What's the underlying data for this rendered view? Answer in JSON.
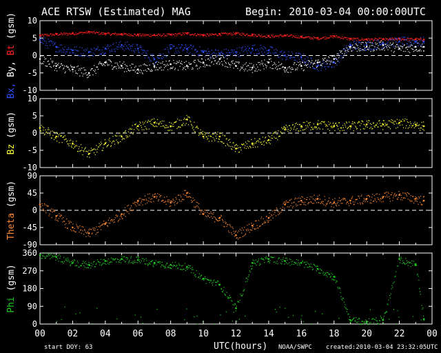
{
  "header": {
    "title": "ACE RTSW (Estimated) MAG",
    "begin": "Begin: 2010-03-04 00:00:00UTC"
  },
  "footer": {
    "start_doy": "start DOY:   63",
    "xlabel": "UTC(hours)",
    "source": "NOAA/SWPC",
    "created": "created:2010-03-04 23:32:05UTC"
  },
  "colors": {
    "bt": "#ff2020",
    "bx": "#3050ff",
    "by": "#ffffff",
    "bz": "#ffff30",
    "theta": "#ff8a30",
    "phi": "#20d020",
    "frame": "#ffffff",
    "zero_line": "#ffffff"
  },
  "chart_data": [
    {
      "type": "scatter",
      "panel": "bfield",
      "ylabel_parts": [
        {
          "text": "Bx,",
          "color": "#3050ff"
        },
        {
          "text": " By,",
          "color": "#ffffff"
        },
        {
          "text": " Bt",
          "color": "#ff2020"
        },
        {
          "text": " (gsm)",
          "color": "#ffffff"
        }
      ],
      "ylim": [
        -10,
        10
      ],
      "yticks": [
        "10",
        "5",
        "0",
        "-5",
        "-10"
      ],
      "ytick_values": [
        10,
        5,
        0,
        -5,
        -10
      ],
      "xlim": [
        0,
        24
      ],
      "series": [
        {
          "name": "Bt",
          "color": "#ff2020",
          "x": [
            0,
            1,
            2,
            3,
            4,
            5,
            6,
            7,
            8,
            9,
            10,
            11,
            12,
            13,
            14,
            15,
            16,
            17,
            18,
            19,
            20,
            21,
            22,
            23,
            23.5
          ],
          "y": [
            5.8,
            6.2,
            6.4,
            6.8,
            6.3,
            6.2,
            6.0,
            5.9,
            6.0,
            6.4,
            5.9,
            6.2,
            6.4,
            6.0,
            5.6,
            5.8,
            5.4,
            5.0,
            5.6,
            4.8,
            4.7,
            4.7,
            4.8,
            4.7,
            4.6
          ]
        },
        {
          "name": "Bx",
          "color": "#3050ff",
          "x": [
            0,
            1,
            2,
            3,
            4,
            5,
            6,
            7,
            8,
            9,
            10,
            11,
            12,
            13,
            14,
            15,
            16,
            17,
            18,
            19,
            20,
            21,
            22,
            23,
            23.5
          ],
          "y": [
            4.5,
            2.5,
            1.5,
            1.0,
            2.0,
            3.0,
            2.0,
            -1.0,
            2.0,
            2.0,
            1.0,
            0.5,
            1.0,
            2.0,
            1.5,
            0.0,
            -0.5,
            -3.0,
            -2.0,
            3.0,
            3.0,
            3.5,
            4.0,
            4.0,
            4.0
          ]
        },
        {
          "name": "By",
          "color": "#ffffff",
          "x": [
            0,
            1,
            2,
            3,
            4,
            5,
            6,
            7,
            8,
            9,
            10,
            11,
            12,
            13,
            14,
            15,
            16,
            17,
            18,
            19,
            20,
            21,
            22,
            23,
            23.5
          ],
          "y": [
            -1.0,
            -3.0,
            -4.0,
            -5.0,
            -2.0,
            -3.0,
            -4.0,
            -3.0,
            -2.5,
            -3.0,
            -2.0,
            -1.0,
            -3.0,
            -3.5,
            -2.0,
            -3.5,
            -3.0,
            -2.0,
            -1.0,
            2.5,
            2.5,
            3.0,
            2.0,
            2.5,
            2.5
          ]
        }
      ]
    },
    {
      "type": "scatter",
      "panel": "bz",
      "ylabel_parts": [
        {
          "text": "Bz",
          "color": "#ffff30"
        },
        {
          "text": "  (gsm)",
          "color": "#ffffff"
        }
      ],
      "ylim": [
        -10,
        10
      ],
      "yticks": [
        "10",
        "5",
        "0",
        "-5",
        "-10"
      ],
      "ytick_values": [
        10,
        5,
        0,
        -5,
        -10
      ],
      "xlim": [
        0,
        24
      ],
      "series": [
        {
          "name": "Bz",
          "color": "#ffff30",
          "x": [
            0,
            1,
            2,
            3,
            4,
            5,
            6,
            7,
            8,
            9,
            10,
            11,
            12,
            13,
            14,
            15,
            16,
            17,
            18,
            19,
            20,
            21,
            22,
            23,
            23.5
          ],
          "y": [
            1.5,
            -1.0,
            -3.0,
            -6.0,
            -3.0,
            -1.0,
            2.0,
            3.0,
            2.0,
            4.0,
            -1.0,
            -1.0,
            -4.5,
            -3.0,
            -2.0,
            1.0,
            2.0,
            2.5,
            2.0,
            2.0,
            2.5,
            2.5,
            3.0,
            2.5,
            2.0
          ]
        }
      ]
    },
    {
      "type": "scatter",
      "panel": "theta",
      "ylabel_parts": [
        {
          "text": "Theta",
          "color": "#ff8a30"
        },
        {
          "text": " (gsm)",
          "color": "#ffffff"
        }
      ],
      "ylim": [
        -90,
        90
      ],
      "yticks": [
        "90",
        "45",
        "0",
        "-45",
        "-90"
      ],
      "ytick_values": [
        90,
        45,
        0,
        -45,
        -90
      ],
      "xlim": [
        0,
        24
      ],
      "series": [
        {
          "name": "Theta",
          "color": "#ff8a30",
          "x": [
            0,
            1,
            2,
            3,
            4,
            5,
            6,
            7,
            8,
            9,
            10,
            11,
            12,
            13,
            14,
            15,
            16,
            17,
            18,
            19,
            20,
            21,
            22,
            23,
            23.5
          ],
          "y": [
            15,
            -15,
            -45,
            -60,
            -35,
            -10,
            25,
            35,
            20,
            45,
            -10,
            -20,
            -65,
            -40,
            -20,
            15,
            25,
            30,
            20,
            25,
            30,
            35,
            40,
            30,
            25
          ]
        }
      ]
    },
    {
      "type": "scatter",
      "panel": "phi",
      "ylabel_parts": [
        {
          "text": "Phi",
          "color": "#20d020"
        },
        {
          "text": "  (gsm)",
          "color": "#ffffff"
        }
      ],
      "ylim": [
        0,
        360
      ],
      "yticks": [
        "360",
        "270",
        "180",
        "90",
        "0"
      ],
      "ytick_values": [
        360,
        270,
        180,
        90,
        0
      ],
      "xlim": [
        0,
        24
      ],
      "series": [
        {
          "name": "Phi",
          "color": "#20d020",
          "x": [
            0,
            1,
            2,
            3,
            4,
            5,
            6,
            7,
            8,
            9,
            10,
            11,
            12,
            13,
            14,
            15,
            16,
            17,
            18,
            19,
            20,
            21,
            22,
            23,
            23.5
          ],
          "y": [
            350,
            340,
            310,
            300,
            320,
            330,
            325,
            310,
            300,
            290,
            230,
            200,
            80,
            310,
            330,
            320,
            310,
            280,
            240,
            20,
            10,
            20,
            330,
            300,
            25
          ]
        }
      ]
    }
  ],
  "xaxis": {
    "ticks": [
      "00",
      "02",
      "04",
      "06",
      "08",
      "10",
      "12",
      "14",
      "16",
      "18",
      "20",
      "22",
      "00"
    ],
    "tick_values": [
      0,
      2,
      4,
      6,
      8,
      10,
      12,
      14,
      16,
      18,
      20,
      22,
      24
    ]
  }
}
